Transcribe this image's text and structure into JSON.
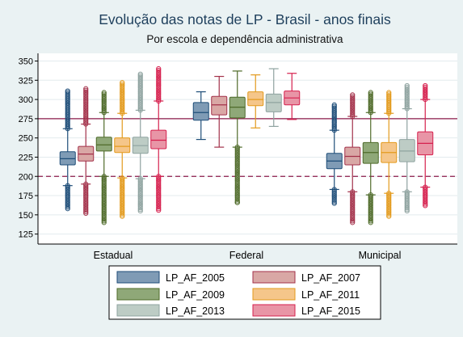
{
  "chart_data": {
    "type": "boxplot",
    "title": "Evolução das notas de LP - Brasil - anos finais",
    "subtitle": "Por escola e dependência administrativa",
    "categories": [
      "Estadual",
      "Federal",
      "Municipal"
    ],
    "yticks": [
      125,
      150,
      175,
      200,
      225,
      250,
      275,
      300,
      325,
      350
    ],
    "ylim": [
      112,
      360
    ],
    "reference_lines": [
      {
        "value": 275,
        "style": "solid",
        "color": "#8B1A4A"
      },
      {
        "value": 200,
        "style": "dashed",
        "color": "#8B1A4A"
      }
    ],
    "legend_position": "bottom",
    "series": [
      {
        "name": "LP_AF_2005",
        "color": "#1F4E79",
        "fill": "#7F9BB5",
        "boxes": [
          {
            "q1": 215,
            "median": 223,
            "q3": 232,
            "lw": 188,
            "uw": 262,
            "omin": 158,
            "omax": 311
          },
          {
            "q1": 273,
            "median": 283,
            "q3": 296,
            "lw": 248,
            "uw": 310,
            "omin": null,
            "omax": null
          },
          {
            "q1": 210,
            "median": 220,
            "q3": 230,
            "lw": 183,
            "uw": 260,
            "omin": 165,
            "omax": 293
          }
        ]
      },
      {
        "name": "LP_AF_2007",
        "color": "#A3314A",
        "fill": "#D9A7A5",
        "boxes": [
          {
            "q1": 220,
            "median": 229,
            "q3": 239,
            "lw": 190,
            "uw": 268,
            "omin": 152,
            "omax": 314
          },
          {
            "q1": 280,
            "median": 293,
            "q3": 304,
            "lw": 238,
            "uw": 330,
            "omin": null,
            "omax": null
          },
          {
            "q1": 215,
            "median": 226,
            "q3": 238,
            "lw": 180,
            "uw": 278,
            "omin": 140,
            "omax": 306
          }
        ]
      },
      {
        "name": "LP_AF_2009",
        "color": "#4F6B2A",
        "fill": "#8FA878",
        "boxes": [
          {
            "q1": 233,
            "median": 241,
            "q3": 251,
            "lw": 200,
            "uw": 283,
            "omin": 140,
            "omax": 309
          },
          {
            "q1": 276,
            "median": 290,
            "q3": 303,
            "lw": 238,
            "uw": 337,
            "omin": 166,
            "omax": 166
          },
          {
            "q1": 217,
            "median": 231,
            "q3": 244,
            "lw": 176,
            "uw": 283,
            "omin": 140,
            "omax": 309
          }
        ]
      },
      {
        "name": "LP_AF_2011",
        "color": "#E39A1C",
        "fill": "#F5C68A",
        "boxes": [
          {
            "q1": 231,
            "median": 239,
            "q3": 250,
            "lw": 198,
            "uw": 282,
            "omin": 148,
            "omax": 322
          },
          {
            "q1": 292,
            "median": 300,
            "q3": 310,
            "lw": 263,
            "uw": 332,
            "omin": null,
            "omax": null
          },
          {
            "q1": 218,
            "median": 231,
            "q3": 244,
            "lw": 178,
            "uw": 282,
            "omin": 148,
            "omax": 309
          }
        ]
      },
      {
        "name": "LP_AF_2013",
        "color": "#8FA3A0",
        "fill": "#BDCCC5",
        "boxes": [
          {
            "q1": 230,
            "median": 240,
            "q3": 251,
            "lw": 197,
            "uw": 286,
            "omin": 155,
            "omax": 333
          },
          {
            "q1": 284,
            "median": 296,
            "q3": 307,
            "lw": 265,
            "uw": 340,
            "omin": null,
            "omax": null
          },
          {
            "q1": 219,
            "median": 233,
            "q3": 248,
            "lw": 180,
            "uw": 288,
            "omin": 155,
            "omax": 318
          }
        ]
      },
      {
        "name": "LP_AF_2015",
        "color": "#D6204E",
        "fill": "#E895A6",
        "boxes": [
          {
            "q1": 236,
            "median": 247,
            "q3": 260,
            "lw": 200,
            "uw": 298,
            "omin": 156,
            "omax": 340
          },
          {
            "q1": 293,
            "median": 302,
            "q3": 311,
            "lw": 274,
            "uw": 334,
            "omin": null,
            "omax": null
          },
          {
            "q1": 228,
            "median": 243,
            "q3": 258,
            "lw": 186,
            "uw": 300,
            "omin": 162,
            "omax": 318
          }
        ]
      }
    ]
  }
}
